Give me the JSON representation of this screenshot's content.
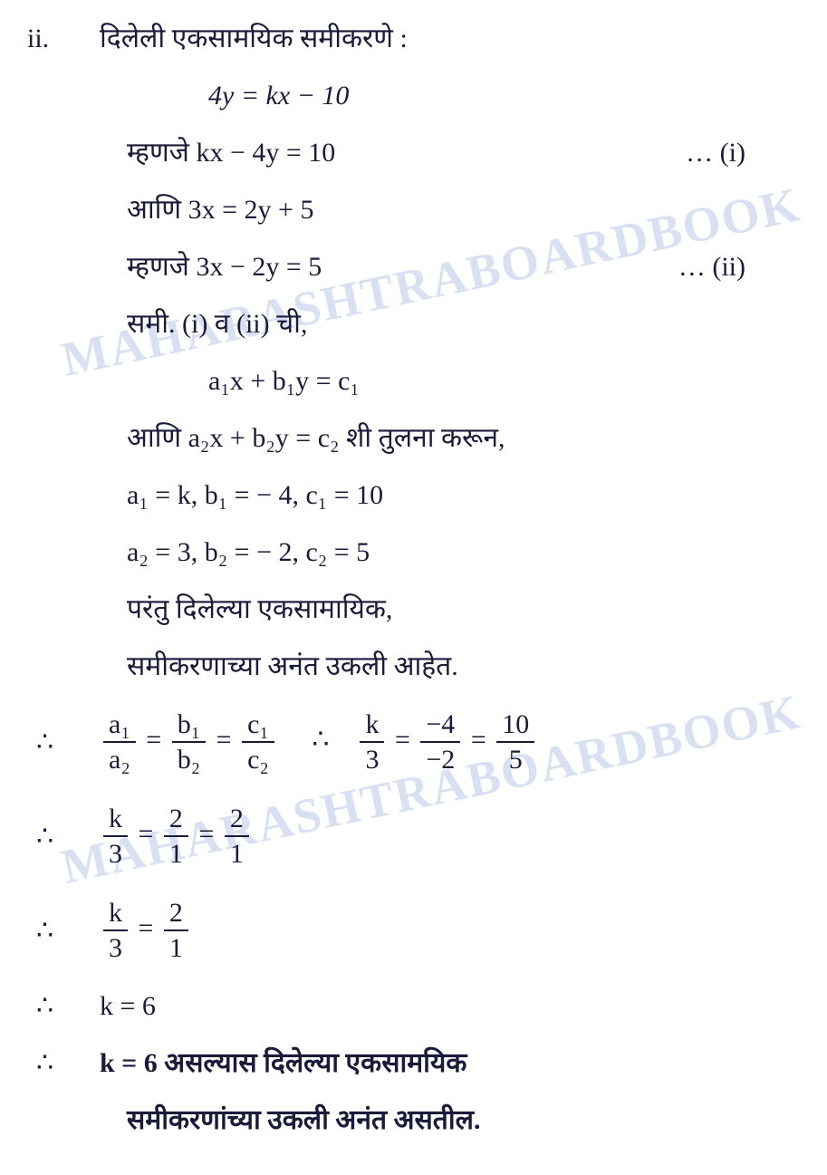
{
  "watermark": "MAHARASHTRABOARDBOOK",
  "problem_number": "ii.",
  "lines": {
    "l1": "दिलेली एकसामयिक समीकरणे :",
    "l2": "4y = kx − 10",
    "l3a": "म्हणजे kx − 4y = 10",
    "l3b": "… (i)",
    "l4": "आणि  3x = 2y + 5",
    "l5a": "म्हणजे 3x − 2y = 5",
    "l5b": "… (ii)",
    "l6": "समी. (i) व (ii) ची,",
    "l7": "a₁x + b₁y = c₁",
    "l8": "आणि  a₂x + b₂y = c₂ शी तुलना करून,",
    "l9": "a₁ = k, b₁ = − 4, c₁ = 10",
    "l10": "a₂ = 3, b₂ = − 2, c₂ = 5",
    "l11": "परंतु दिलेल्या एकसामायिक,",
    "l12": "समीकरणाच्या अनंत उकली आहेत.",
    "l14": "k = 6",
    "l15": "k = 6 असल्यास दिलेल्या एकसामयिक",
    "l16": "समीकरणांच्या उकली अनंत असतील."
  },
  "therefore": "∴",
  "fracs": {
    "a1": "a₁",
    "a2": "a₂",
    "b1": "b₁",
    "b2": "b₂",
    "c1": "c₁",
    "c2": "c₂",
    "k": "k",
    "three": "3",
    "m4": "−4",
    "m2": "−2",
    "ten": "10",
    "five": "5",
    "two": "2",
    "one": "1"
  },
  "eq": "=",
  "colors": {
    "text": "#1a1a3a",
    "watermark": "rgba(100,130,200,0.25)",
    "background": "#ffffff"
  }
}
